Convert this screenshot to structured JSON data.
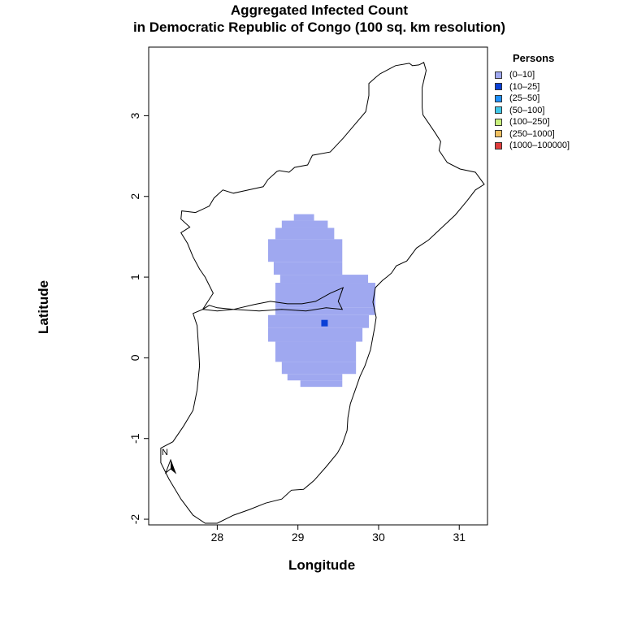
{
  "title_line1": "Aggregated Infected Count",
  "title_line2": "in Democratic Republic of Congo (100 sq. km resolution)",
  "chart_data": {
    "type": "heatmap",
    "xlabel": "Longitude",
    "ylabel": "Latitude",
    "xlim": [
      27.15,
      31.35
    ],
    "ylim": [
      -2.07,
      3.85
    ],
    "x_ticks": [
      "28",
      "29",
      "30",
      "31"
    ],
    "x_tick_values": [
      28,
      29,
      30,
      31
    ],
    "y_ticks": [
      "-2",
      "-1",
      "0",
      "1",
      "2",
      "3"
    ],
    "y_tick_values": [
      -2,
      -1,
      0,
      1,
      2,
      3
    ],
    "legend_title": "Persons",
    "legend": [
      {
        "label": "(0–10]",
        "color": "#9fa8f0"
      },
      {
        "label": "(10–25]",
        "color": "#0a3fd6"
      },
      {
        "label": "(25–50]",
        "color": "#1e90ff"
      },
      {
        "label": "(50–100]",
        "color": "#40c8e8"
      },
      {
        "label": "(100–250]",
        "color": "#c8f07c"
      },
      {
        "label": "(250–1000]",
        "color": "#f0c060"
      },
      {
        "label": "(1000–100000]",
        "color": "#e03c3c"
      }
    ],
    "region_rows": [
      {
        "lat_top": 1.78,
        "lat_bottom": 1.7,
        "lon_from": 28.95,
        "lon_to": 29.2
      },
      {
        "lat_top": 1.7,
        "lat_bottom": 1.61,
        "lon_from": 28.8,
        "lon_to": 29.37
      },
      {
        "lat_top": 1.61,
        "lat_bottom": 1.47,
        "lon_from": 28.72,
        "lon_to": 29.45
      },
      {
        "lat_top": 1.47,
        "lat_bottom": 1.19,
        "lon_from": 28.63,
        "lon_to": 29.55
      },
      {
        "lat_top": 1.19,
        "lat_bottom": 1.03,
        "lon_from": 28.7,
        "lon_to": 29.55
      },
      {
        "lat_top": 1.03,
        "lat_bottom": 0.93,
        "lon_from": 28.78,
        "lon_to": 29.87
      },
      {
        "lat_top": 0.93,
        "lat_bottom": 0.62,
        "lon_from": 28.72,
        "lon_to": 29.96
      },
      {
        "lat_top": 0.62,
        "lat_bottom": 0.53,
        "lon_from": 28.72,
        "lon_to": 29.96
      },
      {
        "lat_top": 0.53,
        "lat_bottom": 0.37,
        "lon_from": 28.63,
        "lon_to": 29.88
      },
      {
        "lat_top": 0.37,
        "lat_bottom": 0.2,
        "lon_from": 28.63,
        "lon_to": 29.8
      },
      {
        "lat_top": 0.2,
        "lat_bottom": -0.05,
        "lon_from": 28.72,
        "lon_to": 29.72
      },
      {
        "lat_top": -0.05,
        "lat_bottom": -0.2,
        "lon_from": 28.8,
        "lon_to": 29.72
      },
      {
        "lat_top": -0.2,
        "lat_bottom": -0.28,
        "lon_from": 28.87,
        "lon_to": 29.55
      },
      {
        "lat_top": -0.28,
        "lat_bottom": -0.36,
        "lon_from": 29.03,
        "lon_to": 29.55
      }
    ],
    "hotspots": [
      {
        "lon": 29.33,
        "lat": 0.43,
        "class": "(10–25]",
        "color": "#0a3fd6"
      }
    ],
    "boundary_outline": [
      [
        28.34,
        2.07
      ],
      [
        28.57,
        2.12
      ],
      [
        28.63,
        2.21
      ],
      [
        28.74,
        2.31
      ],
      [
        28.77,
        2.32
      ],
      [
        28.89,
        2.3
      ],
      [
        28.96,
        2.36
      ],
      [
        29.12,
        2.39
      ],
      [
        29.18,
        2.51
      ],
      [
        29.4,
        2.55
      ],
      [
        29.56,
        2.72
      ],
      [
        29.72,
        2.91
      ],
      [
        29.84,
        3.05
      ],
      [
        29.88,
        3.25
      ],
      [
        29.88,
        3.4
      ],
      [
        29.97,
        3.48
      ],
      [
        30.02,
        3.52
      ],
      [
        30.21,
        3.62
      ],
      [
        30.38,
        3.65
      ],
      [
        30.42,
        3.62
      ],
      [
        30.5,
        3.63
      ],
      [
        30.56,
        3.66
      ],
      [
        30.59,
        3.56
      ],
      [
        30.54,
        3.35
      ],
      [
        30.54,
        3.1
      ],
      [
        30.55,
        3.01
      ],
      [
        30.7,
        2.79
      ],
      [
        30.77,
        2.68
      ],
      [
        30.75,
        2.57
      ],
      [
        30.85,
        2.42
      ],
      [
        31.01,
        2.34
      ],
      [
        31.2,
        2.3
      ],
      [
        31.31,
        2.15
      ],
      [
        31.2,
        2.08
      ],
      [
        31.1,
        1.95
      ],
      [
        30.95,
        1.77
      ],
      [
        30.62,
        1.46
      ],
      [
        30.47,
        1.36
      ],
      [
        30.35,
        1.2
      ],
      [
        30.22,
        1.14
      ],
      [
        30.16,
        1.05
      ],
      [
        30.1,
        1.0
      ],
      [
        30.05,
        0.96
      ],
      [
        29.96,
        0.87
      ],
      [
        29.93,
        0.69
      ],
      [
        29.97,
        0.5
      ],
      [
        29.95,
        0.37
      ],
      [
        29.9,
        0.1
      ],
      [
        29.83,
        -0.1
      ],
      [
        29.77,
        -0.23
      ],
      [
        29.71,
        -0.4
      ],
      [
        29.65,
        -0.57
      ],
      [
        29.62,
        -0.74
      ],
      [
        29.61,
        -0.9
      ],
      [
        29.55,
        -1.07
      ],
      [
        29.49,
        -1.18
      ],
      [
        29.35,
        -1.35
      ],
      [
        29.2,
        -1.52
      ],
      [
        29.07,
        -1.63
      ],
      [
        28.92,
        -1.64
      ],
      [
        28.8,
        -1.75
      ],
      [
        28.6,
        -1.8
      ],
      [
        28.4,
        -1.88
      ],
      [
        28.2,
        -1.95
      ],
      [
        28.0,
        -2.05
      ],
      [
        27.85,
        -2.05
      ],
      [
        27.7,
        -1.95
      ],
      [
        27.55,
        -1.75
      ],
      [
        27.4,
        -1.5
      ],
      [
        27.3,
        -1.3
      ],
      [
        27.3,
        -1.12
      ],
      [
        27.45,
        -1.04
      ],
      [
        27.58,
        -0.85
      ],
      [
        27.7,
        -0.65
      ],
      [
        27.75,
        -0.4
      ],
      [
        27.78,
        -0.1
      ],
      [
        27.77,
        0.1
      ],
      [
        27.75,
        0.4
      ],
      [
        27.7,
        0.55
      ],
      [
        27.82,
        0.6
      ],
      [
        28.0,
        0.58
      ],
      [
        28.2,
        0.6
      ],
      [
        28.46,
        0.66
      ],
      [
        28.66,
        0.7
      ],
      [
        28.87,
        0.67
      ],
      [
        29.05,
        0.67
      ],
      [
        29.22,
        0.7
      ],
      [
        29.4,
        0.8
      ],
      [
        29.56,
        0.87
      ],
      [
        29.5,
        0.7
      ],
      [
        29.55,
        0.6
      ],
      [
        29.35,
        0.62
      ],
      [
        29.1,
        0.58
      ],
      [
        28.8,
        0.6
      ],
      [
        28.52,
        0.58
      ],
      [
        28.2,
        0.6
      ],
      [
        28.0,
        0.62
      ],
      [
        27.9,
        0.65
      ],
      [
        27.82,
        0.6
      ],
      [
        27.95,
        0.8
      ],
      [
        27.85,
        1.0
      ],
      [
        27.78,
        1.1
      ],
      [
        27.7,
        1.25
      ],
      [
        27.63,
        1.42
      ],
      [
        27.55,
        1.55
      ],
      [
        27.66,
        1.62
      ],
      [
        27.55,
        1.72
      ],
      [
        27.56,
        1.82
      ],
      [
        27.73,
        1.8
      ],
      [
        27.9,
        1.88
      ],
      [
        27.96,
        1.98
      ],
      [
        28.07,
        2.08
      ],
      [
        28.2,
        2.04
      ],
      [
        28.34,
        2.07
      ]
    ]
  },
  "north_arrow_label": "N"
}
